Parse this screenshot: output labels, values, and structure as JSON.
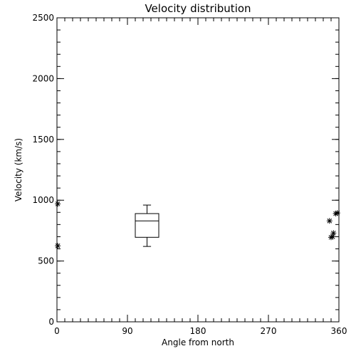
{
  "chart_data": {
    "type": "scatter",
    "title": "Velocity distribution",
    "xlabel": "Angle from north",
    "ylabel": "Velocity (km/s)",
    "xlim": [
      0,
      360
    ],
    "ylim": [
      0,
      2500
    ],
    "xticks": [
      0,
      90,
      180,
      270,
      360
    ],
    "yticks": [
      0,
      500,
      1000,
      1500,
      2000,
      2500
    ],
    "x_minor_step": 10,
    "y_minor_step": 100,
    "grid": false,
    "points": [
      {
        "x": 1,
        "y": 970
      },
      {
        "x": 1,
        "y": 625
      },
      {
        "x": 348,
        "y": 830
      },
      {
        "x": 350,
        "y": 695
      },
      {
        "x": 352,
        "y": 700
      },
      {
        "x": 353,
        "y": 730
      },
      {
        "x": 356,
        "y": 890
      },
      {
        "x": 358,
        "y": 895
      }
    ],
    "boxplot": {
      "x_center": 115,
      "x_width": 30,
      "min": 620,
      "q1": 695,
      "median": 830,
      "q3": 890,
      "max": 960
    }
  }
}
